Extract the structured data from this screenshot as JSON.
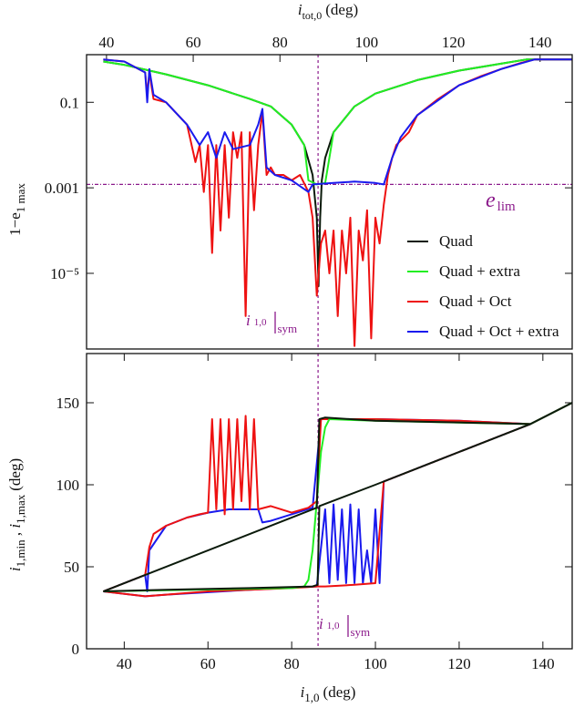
{
  "chart_data": [
    {
      "type": "line",
      "yscale": "log",
      "xlim": [
        31,
        147
      ],
      "x2lim": [
        35.4,
        147.4
      ],
      "x2ticks": [
        40,
        60,
        80,
        100,
        120,
        140
      ],
      "x2_label": {
        "var": "i",
        "sub": "tot,0",
        "unit": "(deg)"
      },
      "y_label": {
        "main": "1−e",
        "sub": "1 max"
      },
      "ylim": [
        1.7e-07,
        1.3
      ],
      "yticks": [
        0.1,
        0.001,
        {
          "value": 1e-05,
          "label": "10⁻⁵"
        }
      ],
      "hline": 0.0012,
      "vline": 86.3,
      "guide_color": "#8b1a8b",
      "hline_label": {
        "var": "e",
        "sub": "lim"
      },
      "vline_label": {
        "var": "i",
        "index": "1,0",
        "sub": "sym"
      },
      "series": [
        {
          "name": "Quad",
          "color": "#0b1a0b",
          "x": [
            35,
            40,
            50,
            60,
            70,
            75,
            80,
            83,
            85,
            86,
            86.4,
            86.8,
            87.2,
            88,
            90,
            95,
            100,
            110,
            120,
            130,
            136,
            147
          ],
          "values": [
            0.9,
            0.75,
            0.45,
            0.25,
            0.12,
            0.08,
            0.03,
            0.01,
            0.002,
            0.0002,
            5e-06,
            0.0002,
            0.0015,
            0.005,
            0.02,
            0.08,
            0.16,
            0.33,
            0.55,
            0.8,
            1.0,
            1.0
          ]
        },
        {
          "name": "Quad + extra",
          "color": "#22ee22",
          "x": [
            35,
            40,
            50,
            60,
            70,
            75,
            80,
            83,
            84,
            86,
            88,
            89,
            90,
            95,
            100,
            110,
            120,
            130,
            136,
            147
          ],
          "values": [
            0.9,
            0.75,
            0.45,
            0.25,
            0.12,
            0.08,
            0.03,
            0.01,
            0.0015,
            0.0012,
            0.0013,
            0.005,
            0.02,
            0.08,
            0.16,
            0.33,
            0.55,
            0.8,
            1.0,
            1.0
          ]
        },
        {
          "name": "Quad + Oct",
          "color": "#ee1111",
          "x": [
            35,
            40,
            45,
            45.5,
            46,
            47,
            50,
            55,
            57,
            58,
            59,
            60,
            61,
            62,
            63,
            64,
            65,
            66,
            67,
            68,
            69,
            70,
            71,
            72,
            73,
            74,
            75,
            76,
            78,
            80,
            82,
            84,
            85,
            86,
            87,
            88,
            89,
            90,
            91,
            92,
            93,
            94,
            95,
            96,
            97,
            98,
            99,
            100,
            101,
            102,
            103,
            104,
            105,
            108,
            110,
            115,
            120,
            125,
            130,
            135,
            138,
            147
          ],
          "values": [
            1.0,
            0.9,
            0.5,
            0.15,
            0.5,
            0.12,
            0.1,
            0.03,
            0.004,
            0.01,
            0.0008,
            0.01,
            3e-05,
            0.01,
            0.0001,
            0.01,
            0.0002,
            0.02,
            0.005,
            0.02,
            1e-06,
            0.02,
            0.0003,
            0.01,
            0.06,
            0.002,
            0.003,
            0.002,
            0.002,
            0.0015,
            0.002,
            0.0008,
            0.0002,
            3e-06,
            5e-05,
            0.0001,
            1e-05,
            0.0001,
            1e-06,
            0.0001,
            1e-05,
            0.0002,
            2e-07,
            0.0001,
            2e-05,
            0.0003,
            3e-07,
            0.0002,
            5e-05,
            0.0004,
            0.002,
            0.005,
            0.01,
            0.02,
            0.05,
            0.12,
            0.25,
            0.4,
            0.6,
            0.85,
            1.0,
            1.0
          ]
        },
        {
          "name": "Quad + Oct + extra",
          "color": "#1a1aee",
          "x": [
            35,
            40,
            45,
            45.5,
            46,
            47,
            50,
            55,
            58,
            60,
            62,
            64,
            66,
            70,
            72,
            73,
            74,
            76,
            80,
            84,
            85,
            90,
            95,
            100,
            102,
            104,
            106,
            110,
            120,
            130,
            138,
            147
          ],
          "values": [
            1.0,
            0.9,
            0.5,
            0.1,
            0.6,
            0.15,
            0.1,
            0.03,
            0.01,
            0.02,
            0.005,
            0.02,
            0.008,
            0.01,
            0.03,
            0.07,
            0.003,
            0.002,
            0.0015,
            0.0008,
            0.0012,
            0.0013,
            0.0014,
            0.0013,
            0.0012,
            0.005,
            0.015,
            0.05,
            0.25,
            0.6,
            1.0,
            1.0
          ]
        }
      ]
    },
    {
      "type": "line",
      "xlim": [
        31,
        147
      ],
      "xticks": [
        40,
        60,
        80,
        100,
        120,
        140
      ],
      "x_label": {
        "var": "i",
        "sub": "1,0",
        "unit": "(deg)"
      },
      "y_label": {
        "var": "i",
        "sub": "1,min",
        "sep": " , ",
        "var2": "i",
        "sub2": "1,max",
        "unit": "(deg)"
      },
      "ylim": [
        0,
        180
      ],
      "yticks": [
        0,
        50,
        100,
        150
      ],
      "vline": 86.3,
      "guide_color": "#8b1a8b",
      "vline_label": {
        "var": "i",
        "index": "1,0",
        "sub": "sym"
      },
      "series": [
        {
          "color": "#1a1aee",
          "x": [
            35,
            45,
            45.5,
            46,
            50,
            55,
            60,
            65,
            70,
            72,
            73,
            75,
            80,
            85,
            87,
            100,
            120,
            137,
            147
          ],
          "values": [
            35,
            45,
            35,
            60,
            75,
            80,
            83,
            85,
            85,
            85,
            77,
            78,
            82,
            86,
            140,
            140,
            139,
            137,
            150
          ]
        },
        {
          "color": "#1a1aee",
          "x": [
            35,
            45,
            50,
            70,
            86,
            88,
            89,
            90,
            91,
            92,
            93,
            94,
            95,
            96,
            97,
            98,
            99,
            100,
            101,
            102,
            110,
            120,
            130,
            137
          ],
          "values": [
            35,
            32,
            33,
            36,
            38,
            85,
            40,
            88,
            42,
            85,
            40,
            88,
            40,
            85,
            40,
            60,
            40,
            85,
            40,
            102,
            110,
            120,
            130,
            137
          ]
        },
        {
          "color": "#ee1111",
          "x": [
            35,
            40,
            45,
            46,
            47,
            50,
            55,
            58,
            60,
            61,
            62,
            63,
            64,
            65,
            66,
            67,
            68,
            69,
            70,
            71,
            72,
            75,
            80,
            84,
            86,
            87,
            90,
            100,
            120,
            137,
            147
          ],
          "values": [
            35,
            40,
            45,
            62,
            70,
            75,
            80,
            82,
            83,
            140,
            85,
            140,
            82,
            140,
            85,
            140,
            90,
            142,
            85,
            140,
            85,
            87,
            83,
            86,
            90,
            140,
            140,
            140,
            139,
            137,
            150
          ]
        },
        {
          "color": "#ee1111",
          "x": [
            35,
            45,
            50,
            60,
            70,
            80,
            86,
            88,
            95,
            100,
            102,
            110,
            120,
            130,
            137
          ],
          "values": [
            35,
            32,
            33,
            35,
            36,
            37,
            38,
            38,
            39,
            40,
            102,
            110,
            120,
            130,
            137
          ]
        },
        {
          "color": "#22ee22",
          "x": [
            35,
            80,
            83,
            84,
            85,
            86,
            87,
            88,
            89,
            100,
            137,
            147
          ],
          "values": [
            35,
            37,
            38,
            42,
            60,
            90,
            120,
            135,
            140,
            139,
            137,
            150
          ]
        },
        {
          "color": "#0b1a0b",
          "x": [
            35,
            50,
            70,
            85,
            86.2,
            86.6,
            100,
            120,
            137
          ],
          "values": [
            35,
            36,
            37,
            38,
            39,
            87,
            100,
            120,
            137
          ]
        },
        {
          "color": "#0b1a0b",
          "x": [
            35,
            86,
            86.6,
            88,
            100,
            120,
            137,
            147
          ],
          "values": [
            35,
            86,
            140,
            141,
            139,
            138,
            137,
            150
          ]
        }
      ]
    }
  ]
}
